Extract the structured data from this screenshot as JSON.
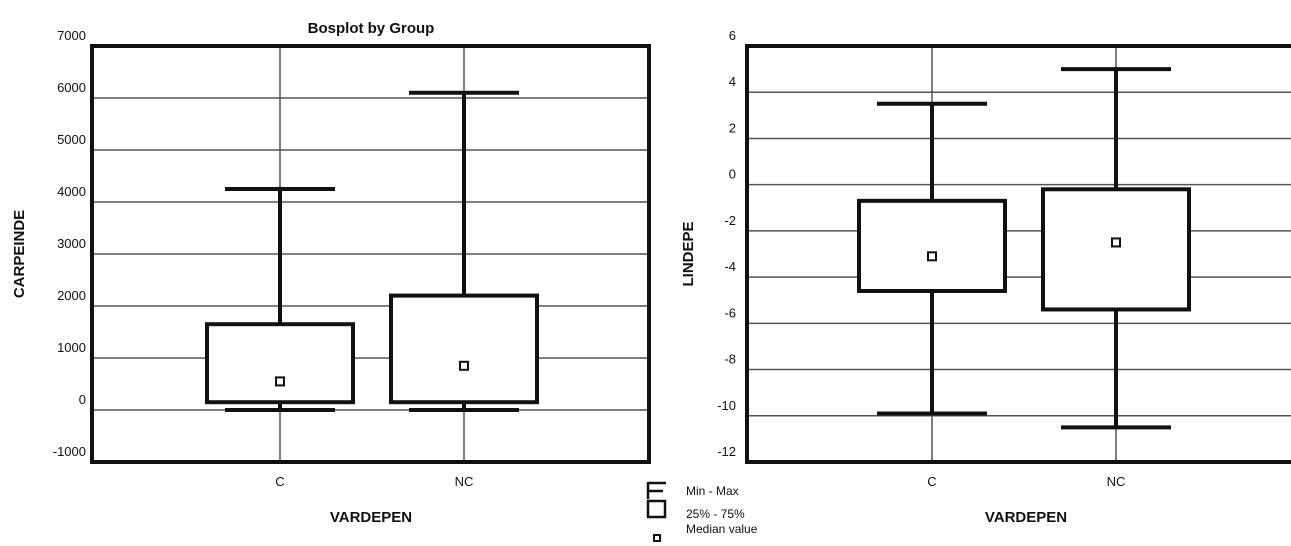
{
  "chart_data": [
    {
      "type": "boxplot",
      "title": "Bosplot by Group",
      "xlabel": "VARDEPEN",
      "ylabel": "CARPEINDE",
      "ylim": [
        -1000,
        7000
      ],
      "y_ticks": [
        "7000",
        "6000",
        "5000",
        "4000",
        "3000",
        "2000",
        "1000",
        "0",
        "-1000"
      ],
      "y_tick_values": [
        7000,
        6000,
        5000,
        4000,
        3000,
        2000,
        1000,
        0,
        -1000
      ],
      "categories": [
        "C",
        "NC"
      ],
      "grid": true,
      "boxes": [
        {
          "category": "C",
          "min": 0,
          "q1": 150,
          "median": 550,
          "q3": 1650,
          "max": 4250
        },
        {
          "category": "NC",
          "min": 0,
          "q1": 150,
          "median": 850,
          "q3": 2200,
          "max": 6100
        }
      ]
    },
    {
      "type": "boxplot",
      "title": "",
      "xlabel": "VARDEPEN",
      "ylabel": "LINDEPE",
      "ylim": [
        -12,
        6
      ],
      "y_ticks": [
        "6",
        "4",
        "2",
        "0",
        "-2",
        "-4",
        "-6",
        "-8",
        "-10",
        "-12"
      ],
      "y_tick_values": [
        6,
        4,
        2,
        0,
        -2,
        -4,
        -6,
        -8,
        -10,
        -12
      ],
      "categories": [
        "C",
        "NC"
      ],
      "grid": true,
      "boxes": [
        {
          "category": "C",
          "min": -9.9,
          "q1": -4.6,
          "median": -3.1,
          "q3": -0.7,
          "max": 3.5
        },
        {
          "category": "NC",
          "min": -10.5,
          "q1": -5.4,
          "median": -2.5,
          "q3": -0.2,
          "max": 5.0
        }
      ]
    }
  ],
  "legend": {
    "items": [
      {
        "icon": "whisker-icon",
        "label": "Min - Max"
      },
      {
        "icon": "box-icon",
        "label": "25% - 75%"
      },
      {
        "icon": "median-square-icon",
        "label": "Median value"
      }
    ]
  }
}
